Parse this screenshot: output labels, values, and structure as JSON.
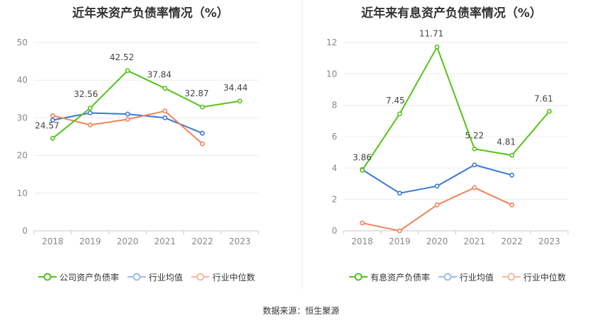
{
  "source_label": "数据来源：恒生聚源",
  "chart_data": [
    {
      "type": "line",
      "title": "近年来资产负债率情况（%）",
      "categories": [
        "2018",
        "2019",
        "2020",
        "2021",
        "2022",
        "2023"
      ],
      "ylim": [
        0,
        50
      ],
      "yticks": [
        0,
        10,
        20,
        30,
        40,
        50
      ],
      "series": [
        {
          "name": "公司资产负债率",
          "color": "#52c41a",
          "values": [
            24.57,
            32.56,
            42.52,
            37.84,
            32.87,
            34.44
          ],
          "labels": [
            "24.57",
            "32.56",
            "42.52",
            "37.84",
            "32.87",
            "34.44"
          ]
        },
        {
          "name": "行业均值",
          "color": "#3a78d6",
          "values": [
            29.4,
            31.3,
            31.0,
            30.0,
            25.9,
            null
          ]
        },
        {
          "name": "行业中位数",
          "color": "#f0845a",
          "values": [
            30.6,
            28.1,
            29.6,
            31.8,
            23.1,
            null
          ]
        }
      ]
    },
    {
      "type": "line",
      "title": "近年来有息资产负债率情况（%）",
      "categories": [
        "2018",
        "2019",
        "2020",
        "2021",
        "2022",
        "2023"
      ],
      "ylim": [
        0,
        12
      ],
      "yticks": [
        0,
        2,
        4,
        6,
        8,
        10,
        12
      ],
      "series": [
        {
          "name": "有息资产负债率",
          "color": "#52c41a",
          "values": [
            3.86,
            7.45,
            11.71,
            5.22,
            4.81,
            7.61
          ],
          "labels": [
            "3.86",
            "7.45",
            "11.71",
            "5.22",
            "4.81",
            "7.61"
          ]
        },
        {
          "name": "行业均值",
          "color": "#3a78d6",
          "values": [
            3.9,
            2.4,
            2.85,
            4.2,
            3.55,
            null
          ]
        },
        {
          "name": "行业中位数",
          "color": "#f0845a",
          "values": [
            0.5,
            0.0,
            1.65,
            2.75,
            1.65,
            null
          ]
        }
      ]
    }
  ]
}
